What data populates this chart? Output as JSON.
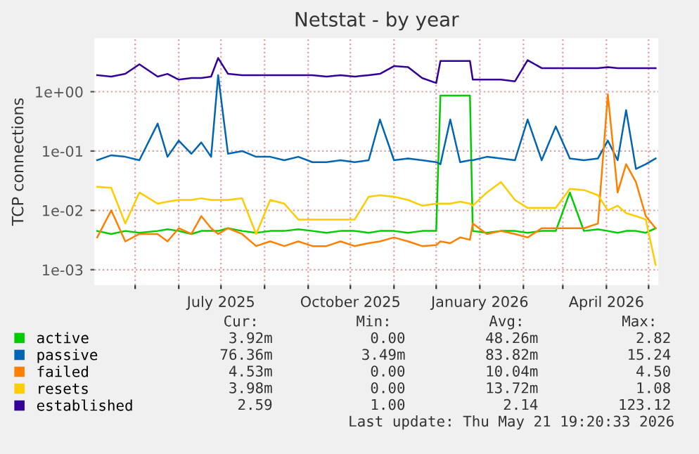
{
  "chart_data": {
    "type": "line",
    "title": "Netstat - by year",
    "ylabel": "TCP connections",
    "log": "y",
    "grid": true,
    "legend": "bottom",
    "line_style": "solid",
    "marker": "none",
    "x": [
      "2025-04-04",
      "2025-04-14",
      "2025-04-24",
      "2025-05-04",
      "2025-05-17",
      "2025-05-24",
      "2025-06-01",
      "2025-06-10",
      "2025-06-17",
      "2025-06-24",
      "2025-06-29",
      "2025-07-06",
      "2025-07-16",
      "2025-07-26",
      "2025-08-05",
      "2025-08-15",
      "2025-08-25",
      "2025-09-04",
      "2025-09-14",
      "2025-09-24",
      "2025-10-04",
      "2025-10-14",
      "2025-10-22",
      "2025-11-01",
      "2025-11-11",
      "2025-11-21",
      "2025-12-01",
      "2025-12-04",
      "2025-12-11",
      "2025-12-18",
      "2025-12-25",
      "2025-12-27",
      "2026-01-06",
      "2026-01-16",
      "2026-01-26",
      "2026-02-04",
      "2026-02-14",
      "2026-02-24",
      "2026-03-06",
      "2026-03-16",
      "2026-03-26",
      "2026-04-02",
      "2026-04-09",
      "2026-04-15",
      "2026-04-22",
      "2026-04-29",
      "2026-05-06"
    ],
    "series": [
      {
        "name": "active",
        "color": "#00cc00",
        "values": [
          0.0045,
          0.004,
          0.0045,
          0.0042,
          0.0045,
          0.0048,
          0.0045,
          0.004,
          0.0045,
          0.0045,
          0.0045,
          0.005,
          0.0045,
          0.0042,
          0.0045,
          0.0045,
          0.0048,
          0.0045,
          0.0042,
          0.0045,
          0.0045,
          0.0042,
          0.0045,
          0.0045,
          0.0042,
          0.0045,
          0.0045,
          0.86,
          0.86,
          0.86,
          0.86,
          0.0045,
          0.0042,
          0.0045,
          0.0045,
          0.0042,
          0.0045,
          0.0045,
          0.02,
          0.0045,
          0.0048,
          0.0045,
          0.0042,
          0.0045,
          0.0045,
          0.0042,
          0.005
        ]
      },
      {
        "name": "passive",
        "color": "#0066b3",
        "values": [
          0.07,
          0.085,
          0.08,
          0.07,
          0.29,
          0.08,
          0.15,
          0.09,
          0.14,
          0.08,
          1.9,
          0.09,
          0.1,
          0.08,
          0.08,
          0.07,
          0.08,
          0.065,
          0.065,
          0.07,
          0.065,
          0.07,
          0.34,
          0.07,
          0.075,
          0.07,
          0.065,
          0.06,
          0.34,
          0.065,
          0.07,
          0.07,
          0.08,
          0.075,
          0.07,
          0.34,
          0.07,
          0.26,
          0.075,
          0.07,
          0.075,
          0.15,
          0.07,
          0.49,
          0.05,
          0.06,
          0.075
        ]
      },
      {
        "name": "failed",
        "color": "#ff8000",
        "values": [
          0.0035,
          0.01,
          0.003,
          0.004,
          0.004,
          0.003,
          0.005,
          0.004,
          0.008,
          0.005,
          0.004,
          0.005,
          0.004,
          0.0025,
          0.003,
          0.0025,
          0.003,
          0.0025,
          0.0025,
          0.003,
          0.0025,
          0.0028,
          0.003,
          0.0035,
          0.003,
          0.0025,
          0.0026,
          0.003,
          0.0028,
          0.0035,
          0.0032,
          0.006,
          0.004,
          0.0045,
          0.004,
          0.0035,
          0.005,
          0.005,
          0.005,
          0.005,
          0.006,
          0.9,
          0.02,
          0.06,
          0.03,
          0.008,
          0.005
        ]
      },
      {
        "name": "resets",
        "color": "#ffcc00",
        "values": [
          0.025,
          0.024,
          0.006,
          0.02,
          0.013,
          0.014,
          0.015,
          0.015,
          0.016,
          0.015,
          0.015,
          0.015,
          0.016,
          0.004,
          0.015,
          0.013,
          0.007,
          0.007,
          0.007,
          0.007,
          0.007,
          0.017,
          0.018,
          0.017,
          0.015,
          0.012,
          0.013,
          0.013,
          0.013,
          0.014,
          0.013,
          0.012,
          0.02,
          0.03,
          0.015,
          0.011,
          0.011,
          0.011,
          0.023,
          0.022,
          0.018,
          0.01,
          0.012,
          0.009,
          0.008,
          0.007,
          0.0012
        ]
      },
      {
        "name": "established",
        "color": "#330099",
        "values": [
          1.9,
          1.8,
          2.0,
          2.9,
          1.8,
          2.0,
          1.6,
          1.7,
          1.7,
          1.8,
          3.7,
          2.0,
          1.9,
          1.9,
          1.9,
          1.9,
          1.9,
          1.9,
          1.8,
          1.9,
          1.8,
          1.9,
          2.0,
          2.7,
          2.6,
          1.7,
          1.4,
          3.3,
          3.3,
          3.3,
          3.3,
          1.6,
          1.6,
          1.6,
          1.5,
          3.4,
          2.5,
          2.5,
          2.5,
          2.5,
          2.5,
          2.6,
          2.5,
          2.5,
          2.5,
          2.5,
          2.5
        ]
      }
    ],
    "xlim": [
      "2025-04-02",
      "2026-05-08"
    ],
    "xticks": [
      {
        "value": "2025-05-01",
        "label": null
      },
      {
        "value": "2025-06-01",
        "label": null
      },
      {
        "value": "2025-07-01",
        "label": "July 2025"
      },
      {
        "value": "2025-08-01",
        "label": null
      },
      {
        "value": "2025-09-01",
        "label": null
      },
      {
        "value": "2025-10-01",
        "label": "October 2025"
      },
      {
        "value": "2025-11-01",
        "label": null
      },
      {
        "value": "2025-12-01",
        "label": null
      },
      {
        "value": "2026-01-01",
        "label": "January 2026"
      },
      {
        "value": "2026-02-01",
        "label": null
      },
      {
        "value": "2026-03-01",
        "label": null
      },
      {
        "value": "2026-04-01",
        "label": "April 2026"
      },
      {
        "value": "2026-05-01",
        "label": null
      }
    ],
    "ylim": [
      0.00055,
      8
    ],
    "yticks": [
      {
        "value": 0.001,
        "label": "1e-03"
      },
      {
        "value": 0.01,
        "label": "1e-02"
      },
      {
        "value": 0.1,
        "label": "1e-01"
      },
      {
        "value": 1,
        "label": "1e+00"
      }
    ],
    "annotations": [
      "Cur:",
      "Min:",
      "Avg:",
      "Max:",
      "3.92m",
      "0.00",
      "48.26m",
      "2.82",
      "76.36m",
      "3.49m",
      "83.82m",
      "15.24",
      "4.53m",
      "0.00",
      "10.04m",
      "4.50",
      "3.98m",
      "0.00",
      "13.72m",
      "1.08",
      "2.59",
      "1.00",
      "2.14",
      "123.12",
      "Last update: Thu May 21 19:20:33 2026"
    ]
  }
}
